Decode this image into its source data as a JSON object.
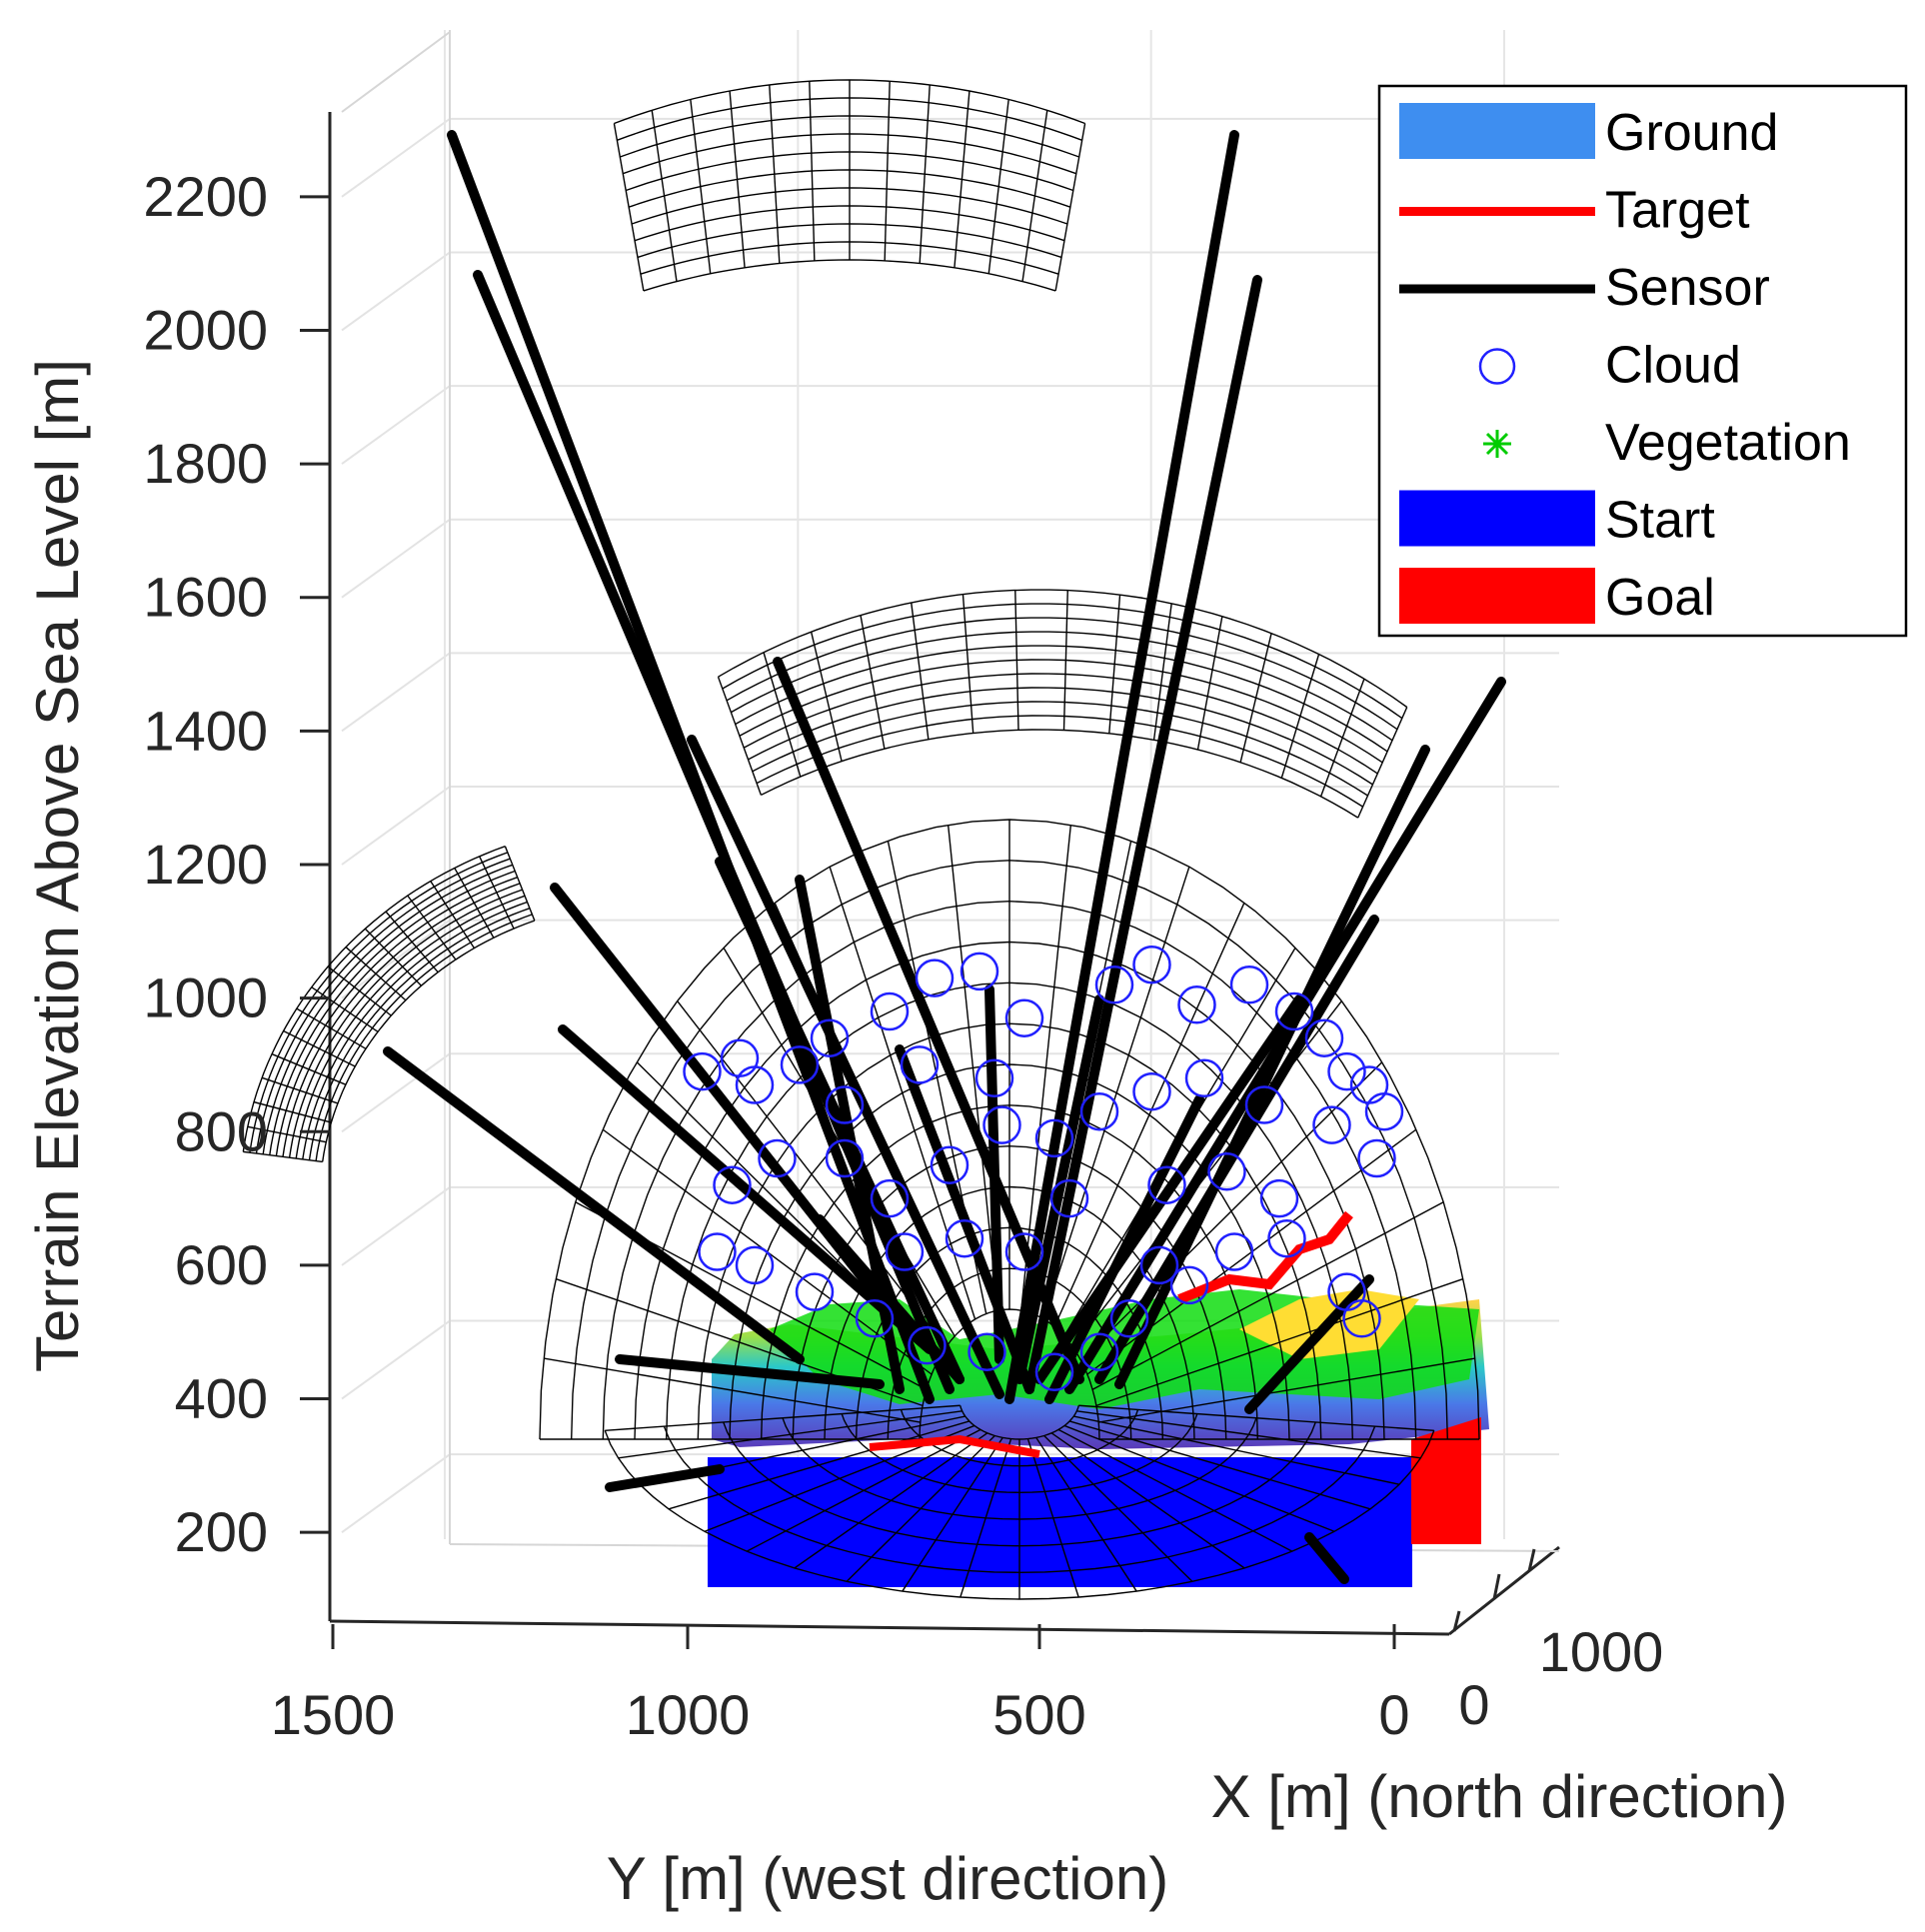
{
  "chart_data": {
    "type": "scatter",
    "projection": "3d",
    "zlabel": "Terrain Elevation Above Sea Level [m]",
    "ylabel": "Y [m] (west direction)",
    "xlabel": "X [m] (north direction)",
    "z_ticks": [
      "2200",
      "2000",
      "1800",
      "1600",
      "1400",
      "1200",
      "1000",
      "800",
      "600",
      "400",
      "200"
    ],
    "y_ticks": [
      "1500",
      "1000",
      "500",
      "0"
    ],
    "x_ticks": [
      "0",
      "1000"
    ],
    "zlim": [
      70,
      2330
    ],
    "ylim": [
      0,
      1500
    ],
    "grid": true,
    "legend_position": "top-right",
    "legend": [
      {
        "label": "Ground",
        "kind": "patch",
        "color": "#3e8ef0"
      },
      {
        "label": "Target",
        "kind": "line",
        "color": "#ff0000"
      },
      {
        "label": "Sensor",
        "kind": "line",
        "color": "#000000"
      },
      {
        "label": "Cloud",
        "kind": "circle",
        "color": "#2020ff"
      },
      {
        "label": "Vegetation",
        "kind": "star",
        "color": "#00cc00"
      },
      {
        "label": "Start",
        "kind": "patch",
        "color": "#0000ff"
      },
      {
        "label": "Goal",
        "kind": "patch",
        "color": "#ff0000"
      }
    ],
    "cloud_points_yz": [
      [
        950,
        890
      ],
      [
        900,
        910
      ],
      [
        880,
        870
      ],
      [
        820,
        900
      ],
      [
        780,
        940
      ],
      [
        700,
        980
      ],
      [
        640,
        1030
      ],
      [
        580,
        1040
      ],
      [
        520,
        970
      ],
      [
        400,
        1020
      ],
      [
        350,
        1050
      ],
      [
        290,
        990
      ],
      [
        220,
        1020
      ],
      [
        160,
        980
      ],
      [
        120,
        940
      ],
      [
        90,
        890
      ],
      [
        60,
        870
      ],
      [
        40,
        830
      ],
      [
        50,
        760
      ],
      [
        110,
        810
      ],
      [
        200,
        840
      ],
      [
        280,
        880
      ],
      [
        350,
        860
      ],
      [
        420,
        830
      ],
      [
        480,
        790
      ],
      [
        550,
        810
      ],
      [
        620,
        750
      ],
      [
        700,
        700
      ],
      [
        760,
        760
      ],
      [
        850,
        760
      ],
      [
        910,
        720
      ],
      [
        930,
        620
      ],
      [
        880,
        600
      ],
      [
        800,
        560
      ],
      [
        720,
        520
      ],
      [
        650,
        480
      ],
      [
        570,
        470
      ],
      [
        480,
        440
      ],
      [
        420,
        470
      ],
      [
        380,
        520
      ],
      [
        300,
        570
      ],
      [
        240,
        620
      ],
      [
        170,
        640
      ],
      [
        90,
        560
      ],
      [
        70,
        520
      ],
      [
        520,
        620
      ],
      [
        600,
        640
      ],
      [
        680,
        620
      ],
      [
        460,
        700
      ],
      [
        330,
        720
      ],
      [
        250,
        740
      ],
      [
        180,
        700
      ],
      [
        560,
        880
      ],
      [
        660,
        900
      ],
      [
        760,
        840
      ],
      [
        340,
        600
      ]
    ]
  }
}
